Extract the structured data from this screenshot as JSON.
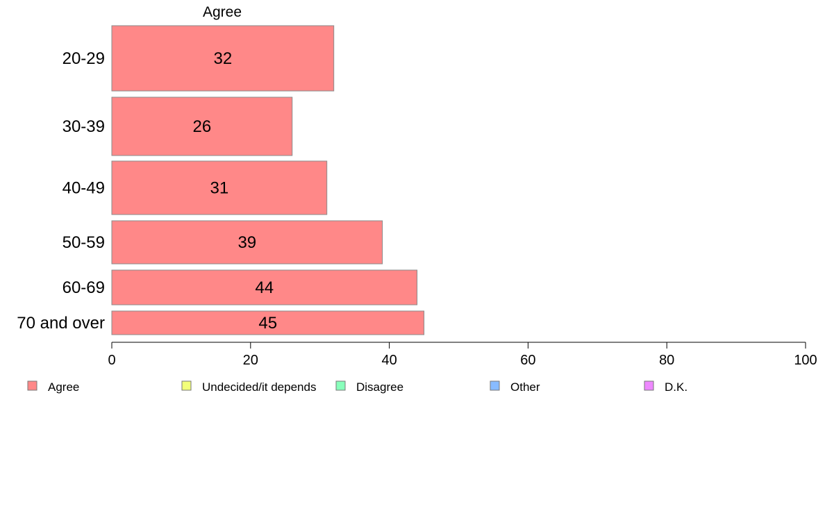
{
  "chart_data": {
    "type": "bar",
    "orientation": "horizontal",
    "title": "Agree",
    "categories": [
      "20-29",
      "30-39",
      "40-49",
      "50-59",
      "60-69",
      "70 and over"
    ],
    "series": [
      {
        "name": "Agree",
        "values": [
          32,
          26,
          31,
          39,
          44,
          45
        ],
        "color": "#ff8888"
      }
    ],
    "xlim": [
      0,
      100
    ],
    "xticks": [
      0,
      20,
      40,
      60,
      80,
      100
    ],
    "grid": false,
    "legend": {
      "placement": "bottom",
      "items": [
        {
          "label": "Agree",
          "color": "#ff8888"
        },
        {
          "label": "Undecided/it depends",
          "color": "#f2ff7a"
        },
        {
          "label": "Disagree",
          "color": "#88ffbb"
        },
        {
          "label": "Other",
          "color": "#88bbff"
        },
        {
          "label": "D.K.",
          "color": "#ee88ff"
        }
      ]
    }
  }
}
